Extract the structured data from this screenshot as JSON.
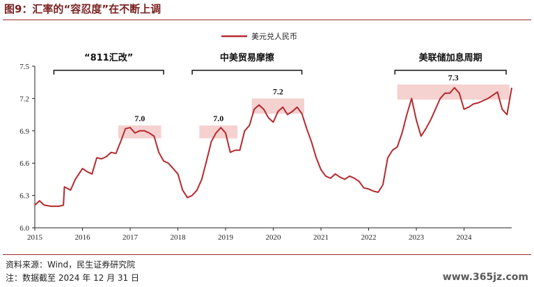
{
  "figure": {
    "title": "图9：汇率的“容忍度”在不断上调",
    "source": "资料来源：Wind，民生证券研究院",
    "note": "注：数据截至 2024 年 12 月 31 日",
    "watermark": "www.365jz.com"
  },
  "colors": {
    "line": "#b5282c",
    "band": "#f3c9c8",
    "accent": "#9b2a2a"
  },
  "chart_data": {
    "type": "line",
    "title": "",
    "xlabel": "",
    "ylabel": "",
    "xlim": [
      2015.0,
      2025.0
    ],
    "ylim": [
      6.0,
      7.5
    ],
    "x_ticks": [
      2015,
      2016,
      2017,
      2018,
      2019,
      2020,
      2021,
      2022,
      2023,
      2024
    ],
    "x_tick_labels": [
      "2015",
      "2016",
      "2017",
      "2018",
      "2019",
      "2020",
      "2021",
      "2022",
      "2023",
      "2024"
    ],
    "y_ticks": [
      6.0,
      6.3,
      6.6,
      6.9,
      7.2,
      7.5
    ],
    "y_tick_labels": [
      "6.0",
      "6.3",
      "6.6",
      "6.9",
      "7.2",
      "7.5"
    ],
    "grid": false,
    "legend_position": "top-center",
    "series": [
      {
        "name": "美元兑人民币",
        "x": [
          2015.0,
          2015.1,
          2015.2,
          2015.35,
          2015.5,
          2015.6,
          2015.62,
          2015.75,
          2015.85,
          2016.0,
          2016.1,
          2016.2,
          2016.3,
          2016.4,
          2016.5,
          2016.6,
          2016.7,
          2016.8,
          2016.9,
          2017.0,
          2017.1,
          2017.2,
          2017.3,
          2017.4,
          2017.5,
          2017.6,
          2017.7,
          2017.8,
          2017.9,
          2018.0,
          2018.1,
          2018.2,
          2018.3,
          2018.4,
          2018.5,
          2018.6,
          2018.7,
          2018.8,
          2018.9,
          2019.0,
          2019.1,
          2019.2,
          2019.3,
          2019.4,
          2019.5,
          2019.6,
          2019.7,
          2019.8,
          2019.9,
          2020.0,
          2020.1,
          2020.2,
          2020.3,
          2020.4,
          2020.5,
          2020.6,
          2020.7,
          2020.8,
          2020.9,
          2021.0,
          2021.1,
          2021.2,
          2021.3,
          2021.4,
          2021.5,
          2021.6,
          2021.7,
          2021.8,
          2021.9,
          2022.0,
          2022.1,
          2022.2,
          2022.3,
          2022.4,
          2022.5,
          2022.6,
          2022.7,
          2022.8,
          2022.9,
          2023.0,
          2023.1,
          2023.2,
          2023.3,
          2023.4,
          2023.5,
          2023.6,
          2023.7,
          2023.8,
          2023.9,
          2024.0,
          2024.1,
          2024.2,
          2024.3,
          2024.4,
          2024.5,
          2024.6,
          2024.7,
          2024.8,
          2024.9,
          2025.0
        ],
        "values": [
          6.21,
          6.25,
          6.21,
          6.2,
          6.2,
          6.21,
          6.38,
          6.35,
          6.45,
          6.55,
          6.52,
          6.5,
          6.65,
          6.64,
          6.66,
          6.7,
          6.69,
          6.8,
          6.92,
          6.93,
          6.88,
          6.9,
          6.9,
          6.88,
          6.85,
          6.7,
          6.62,
          6.6,
          6.55,
          6.5,
          6.35,
          6.28,
          6.3,
          6.35,
          6.45,
          6.62,
          6.8,
          6.88,
          6.93,
          6.88,
          6.7,
          6.72,
          6.72,
          6.9,
          6.95,
          7.1,
          7.14,
          7.1,
          7.02,
          6.98,
          7.08,
          7.12,
          7.05,
          7.08,
          7.12,
          7.06,
          6.92,
          6.8,
          6.65,
          6.54,
          6.48,
          6.46,
          6.5,
          6.47,
          6.45,
          6.48,
          6.46,
          6.43,
          6.37,
          6.36,
          6.34,
          6.33,
          6.4,
          6.65,
          6.72,
          6.75,
          6.88,
          7.05,
          7.2,
          7.0,
          6.85,
          6.92,
          7.0,
          7.1,
          7.2,
          7.25,
          7.25,
          7.3,
          7.25,
          7.1,
          7.12,
          7.15,
          7.16,
          7.18,
          7.2,
          7.23,
          7.26,
          7.1,
          7.05,
          7.3
        ]
      }
    ],
    "highlights": [
      {
        "label": "7.0",
        "x": [
          2016.75,
          2017.65
        ],
        "y": [
          6.83,
          6.95
        ]
      },
      {
        "label": "7.0",
        "x": [
          2018.45,
          2019.25
        ],
        "y": [
          6.83,
          6.95
        ]
      },
      {
        "label": "7.2",
        "x": [
          2019.55,
          2020.65
        ],
        "y": [
          7.06,
          7.2
        ]
      },
      {
        "label": "7.3",
        "x": [
          2022.6,
          2024.95
        ],
        "y": [
          7.19,
          7.33
        ]
      }
    ],
    "brackets": [
      {
        "label": "“811汇改”",
        "x": [
          2015.4,
          2017.7
        ]
      },
      {
        "label": "中美贸易摩擦",
        "x": [
          2018.3,
          2020.6
        ]
      },
      {
        "label": "美联储加息周期",
        "x": [
          2022.55,
          2025.0
        ]
      }
    ]
  }
}
